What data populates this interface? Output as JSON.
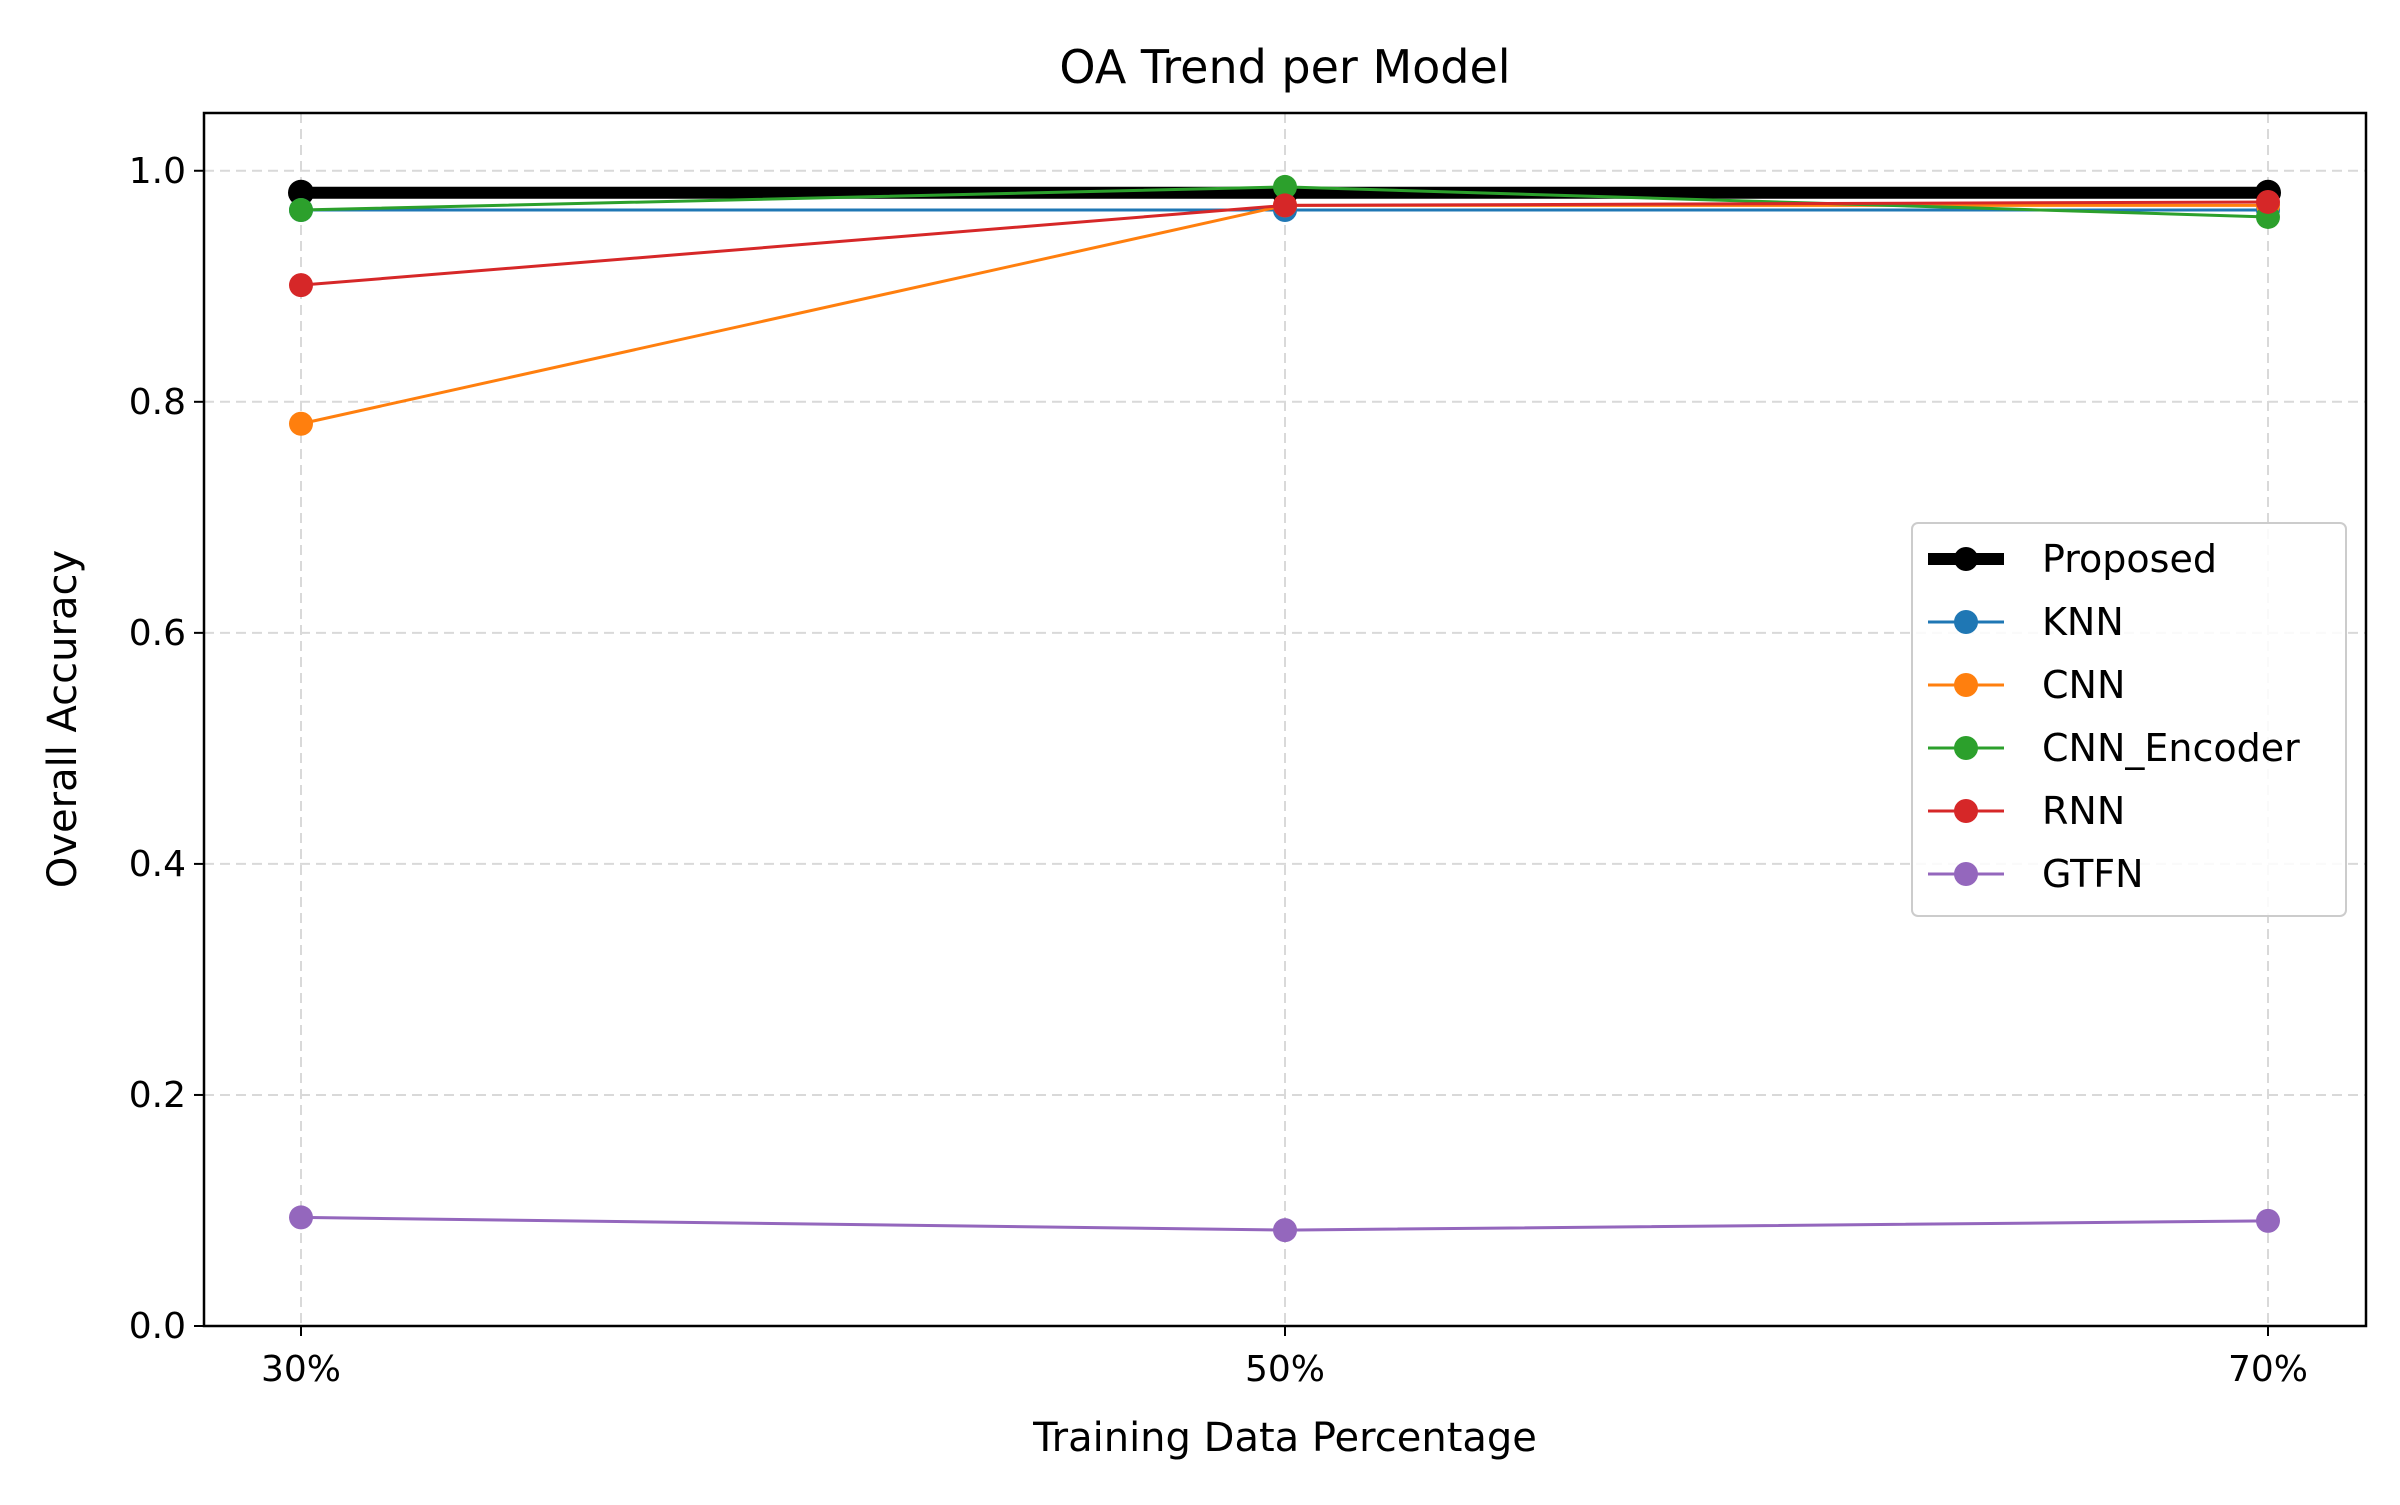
{
  "chart_data": {
    "type": "line",
    "title": "OA Trend per Model",
    "xlabel": "Training Data Percentage",
    "ylabel": "Overall Accuracy",
    "categories": [
      "30%",
      "50%",
      "70%"
    ],
    "ylim": [
      0,
      1.05
    ],
    "yticks": [
      "0.0",
      "0.2",
      "0.4",
      "0.6",
      "0.8",
      "1.0"
    ],
    "grid": true,
    "legend_position": "center-right",
    "series": [
      {
        "name": "Proposed",
        "color": "#000000",
        "emphasis": true,
        "values": [
          0.981,
          0.981,
          0.981
        ]
      },
      {
        "name": "KNN",
        "color": "#1f77b4",
        "values": [
          0.966,
          0.966,
          0.966
        ]
      },
      {
        "name": "CNN",
        "color": "#ff7f0e",
        "values": [
          0.781,
          0.97,
          0.97
        ]
      },
      {
        "name": "CNN_Encoder",
        "color": "#2ca02c",
        "values": [
          0.966,
          0.986,
          0.96
        ]
      },
      {
        "name": "RNN",
        "color": "#d62728",
        "values": [
          0.901,
          0.97,
          0.973
        ]
      },
      {
        "name": "GTFN",
        "color": "#9467bd",
        "values": [
          0.094,
          0.083,
          0.091
        ]
      }
    ]
  }
}
